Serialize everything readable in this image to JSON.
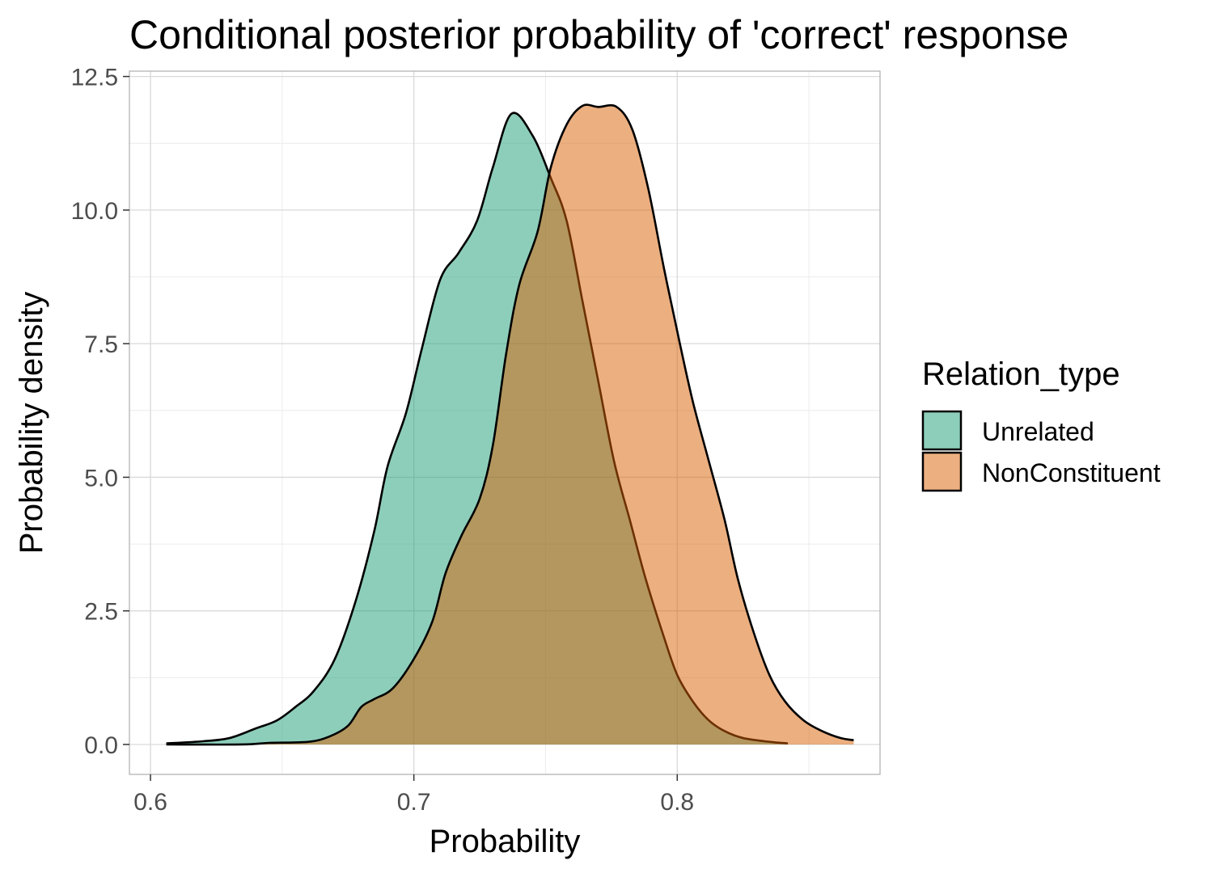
{
  "chart_data": {
    "type": "area",
    "title": "Conditional posterior probability of 'correct' response",
    "xlabel": "Probability",
    "ylabel": "Probability density",
    "xlim": [
      0.592,
      0.877
    ],
    "ylim": [
      -0.56,
      12.6
    ],
    "x_ticks": [
      0.6,
      0.7,
      0.8
    ],
    "x_tick_labels": [
      "0.6",
      "0.7",
      "0.8"
    ],
    "y_ticks": [
      0,
      2.5,
      5,
      7.5,
      10,
      12.5
    ],
    "y_tick_labels": [
      "0.0",
      "2.5",
      "5.0",
      "7.5",
      "10.0",
      "12.5"
    ],
    "grid": true,
    "legend": {
      "title": "Relation_type",
      "placement": "right"
    },
    "series": [
      {
        "name": "Unrelated",
        "color": "#1b9e77",
        "alpha": 0.5,
        "points": [
          [
            0.606,
            0.02
          ],
          [
            0.62,
            0.06
          ],
          [
            0.63,
            0.12
          ],
          [
            0.64,
            0.3
          ],
          [
            0.648,
            0.45
          ],
          [
            0.655,
            0.7
          ],
          [
            0.662,
            1.0
          ],
          [
            0.67,
            1.6
          ],
          [
            0.678,
            2.7
          ],
          [
            0.685,
            4.0
          ],
          [
            0.69,
            5.2
          ],
          [
            0.697,
            6.2
          ],
          [
            0.703,
            7.4
          ],
          [
            0.71,
            8.7
          ],
          [
            0.717,
            9.2
          ],
          [
            0.724,
            9.8
          ],
          [
            0.73,
            10.8
          ],
          [
            0.737,
            11.8
          ],
          [
            0.745,
            11.4
          ],
          [
            0.752,
            10.6
          ],
          [
            0.758,
            9.8
          ],
          [
            0.764,
            8.3
          ],
          [
            0.77,
            6.8
          ],
          [
            0.776,
            5.3
          ],
          [
            0.782,
            4.2
          ],
          [
            0.788,
            3.1
          ],
          [
            0.795,
            2.0
          ],
          [
            0.8,
            1.3
          ],
          [
            0.806,
            0.8
          ],
          [
            0.812,
            0.45
          ],
          [
            0.818,
            0.25
          ],
          [
            0.825,
            0.12
          ],
          [
            0.835,
            0.05
          ],
          [
            0.842,
            0.02
          ]
        ]
      },
      {
        "name": "NonConstituent",
        "color": "#d95f02",
        "alpha": 0.5,
        "points": [
          [
            0.606,
            0.0
          ],
          [
            0.635,
            0.0
          ],
          [
            0.645,
            0.03
          ],
          [
            0.66,
            0.05
          ],
          [
            0.668,
            0.15
          ],
          [
            0.675,
            0.35
          ],
          [
            0.68,
            0.7
          ],
          [
            0.685,
            0.85
          ],
          [
            0.692,
            1.05
          ],
          [
            0.7,
            1.6
          ],
          [
            0.707,
            2.3
          ],
          [
            0.712,
            3.2
          ],
          [
            0.718,
            3.9
          ],
          [
            0.725,
            4.6
          ],
          [
            0.73,
            5.6
          ],
          [
            0.735,
            7.3
          ],
          [
            0.74,
            8.6
          ],
          [
            0.747,
            9.6
          ],
          [
            0.752,
            10.8
          ],
          [
            0.758,
            11.6
          ],
          [
            0.764,
            11.95
          ],
          [
            0.77,
            11.93
          ],
          [
            0.777,
            11.93
          ],
          [
            0.783,
            11.5
          ],
          [
            0.789,
            10.4
          ],
          [
            0.795,
            8.9
          ],
          [
            0.801,
            7.5
          ],
          [
            0.806,
            6.4
          ],
          [
            0.812,
            5.3
          ],
          [
            0.818,
            4.2
          ],
          [
            0.823,
            3.1
          ],
          [
            0.829,
            2.1
          ],
          [
            0.835,
            1.3
          ],
          [
            0.841,
            0.8
          ],
          [
            0.848,
            0.45
          ],
          [
            0.855,
            0.25
          ],
          [
            0.862,
            0.12
          ],
          [
            0.867,
            0.08
          ]
        ]
      }
    ]
  }
}
